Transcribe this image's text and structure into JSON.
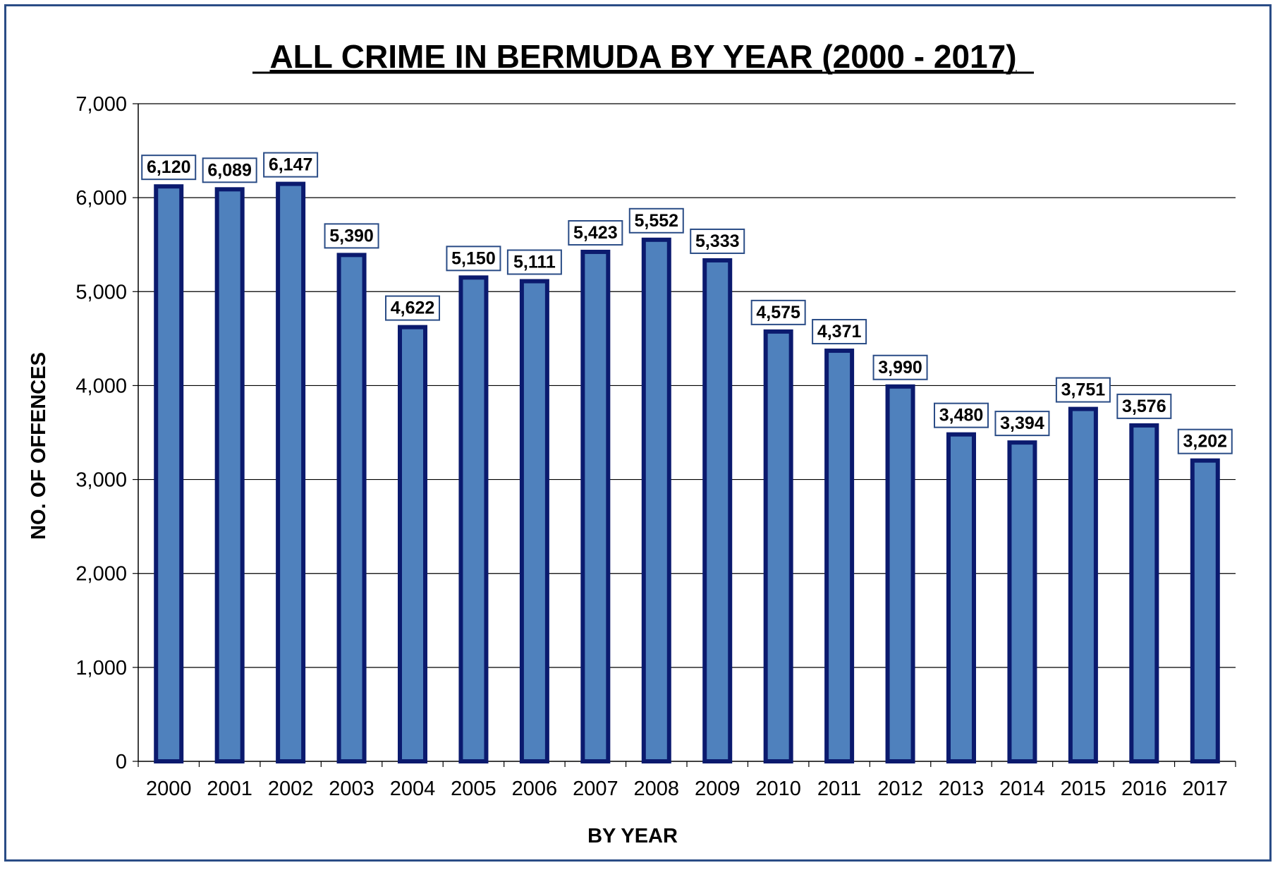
{
  "chart_data": {
    "type": "bar",
    "title": "ALL CRIME IN BERMUDA BY YEAR (2000 - 2017)",
    "xlabel": "BY YEAR",
    "ylabel": "NO. OF OFFENCES",
    "categories": [
      "2000",
      "2001",
      "2002",
      "2003",
      "2004",
      "2005",
      "2006",
      "2007",
      "2008",
      "2009",
      "2010",
      "2011",
      "2012",
      "2013",
      "2014",
      "2015",
      "2016",
      "2017"
    ],
    "values": [
      6120,
      6089,
      6147,
      5390,
      4622,
      5150,
      5111,
      5423,
      5552,
      5333,
      4575,
      4371,
      3990,
      3480,
      3394,
      3751,
      3576,
      3202
    ],
    "value_labels": [
      "6,120",
      "6,089",
      "6,147",
      "5,390",
      "4,622",
      "5,150",
      "5,111",
      "5,423",
      "5,552",
      "5,333",
      "4,575",
      "4,371",
      "3,990",
      "3,480",
      "3,394",
      "3,751",
      "3,576",
      "3,202"
    ],
    "ylim": [
      0,
      7000
    ],
    "yticks": [
      0,
      1000,
      2000,
      3000,
      4000,
      5000,
      6000,
      7000
    ],
    "ytick_labels": [
      "0",
      "1,000",
      "2,000",
      "3,000",
      "4,000",
      "5,000",
      "6,000",
      "7,000"
    ],
    "grid": true,
    "legend": "none",
    "colors": {
      "bar_fill": "#4f81bd",
      "bar_stroke": "#0b1a6e",
      "label_box_stroke": "#2a4c86",
      "frame": "#2a4c86"
    }
  }
}
